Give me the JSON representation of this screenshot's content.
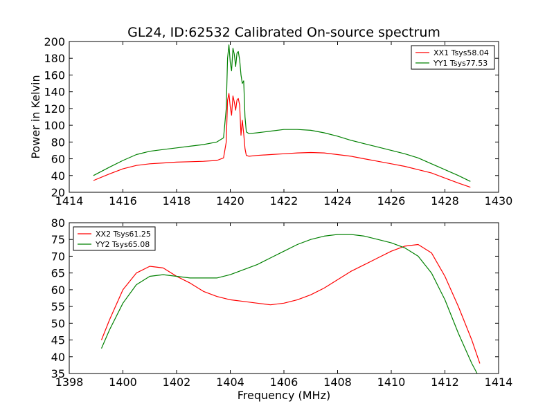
{
  "chart_data": [
    {
      "type": "line",
      "title": "GL24, ID:62532 Calibrated On-source spectrum",
      "xlabel": "",
      "ylabel": "Power in Kelvin",
      "xlim": [
        1414,
        1430
      ],
      "ylim": [
        20,
        200
      ],
      "xticks": [
        "1414",
        "1416",
        "1418",
        "1420",
        "1422",
        "1424",
        "1426",
        "1428",
        "1430"
      ],
      "yticks": [
        "20",
        "40",
        "60",
        "80",
        "100",
        "120",
        "140",
        "160",
        "180",
        "200"
      ],
      "legend_position": "top-right",
      "series": [
        {
          "name": "XX1 Tsys58.04",
          "color": "#ff0000",
          "x": [
            1414.9,
            1415.5,
            1416.0,
            1416.5,
            1417.0,
            1417.5,
            1418.0,
            1418.5,
            1419.0,
            1419.5,
            1419.75,
            1419.85,
            1419.9,
            1419.95,
            1420.0,
            1420.05,
            1420.1,
            1420.15,
            1420.2,
            1420.25,
            1420.3,
            1420.35,
            1420.4,
            1420.45,
            1420.5,
            1420.55,
            1420.6,
            1420.7,
            1421.0,
            1421.5,
            1422.0,
            1422.5,
            1423.0,
            1423.5,
            1424.0,
            1424.5,
            1425.0,
            1425.5,
            1426.0,
            1426.5,
            1427.0,
            1427.5,
            1428.0,
            1428.5,
            1428.95
          ],
          "y": [
            34,
            42,
            48,
            52,
            54,
            55,
            56,
            56.5,
            57,
            58,
            61,
            80,
            130,
            138,
            122,
            112,
            135,
            128,
            118,
            130,
            132,
            124,
            88,
            106,
            90,
            72,
            64,
            63,
            64,
            65,
            66,
            67,
            67.5,
            67,
            65,
            63,
            60,
            57,
            54,
            51,
            47,
            43,
            37,
            31,
            26
          ]
        },
        {
          "name": "YY1 Tsys77.53",
          "color": "#008000",
          "x": [
            1414.9,
            1415.5,
            1416.0,
            1416.5,
            1417.0,
            1417.5,
            1418.0,
            1418.5,
            1419.0,
            1419.5,
            1419.75,
            1419.85,
            1419.9,
            1419.95,
            1420.0,
            1420.05,
            1420.1,
            1420.15,
            1420.2,
            1420.25,
            1420.3,
            1420.35,
            1420.4,
            1420.45,
            1420.5,
            1420.55,
            1420.6,
            1420.7,
            1421.0,
            1421.5,
            1422.0,
            1422.5,
            1423.0,
            1423.5,
            1424.0,
            1424.5,
            1425.0,
            1425.5,
            1426.0,
            1426.5,
            1427.0,
            1427.5,
            1428.0,
            1428.5,
            1428.95
          ],
          "y": [
            40,
            50,
            58,
            65,
            69,
            71,
            73,
            75,
            77,
            80,
            85,
            120,
            180,
            196,
            175,
            165,
            192,
            185,
            170,
            186,
            188,
            178,
            160,
            150,
            153,
            110,
            92,
            90,
            91,
            93,
            95,
            95,
            94,
            91,
            87,
            82,
            78,
            74,
            70,
            66,
            61,
            54,
            47,
            40,
            33
          ]
        }
      ]
    },
    {
      "type": "line",
      "title": "",
      "xlabel": "Frequency (MHz)",
      "ylabel": "",
      "xlim": [
        1398,
        1414
      ],
      "ylim": [
        35,
        80
      ],
      "xticks": [
        "1398",
        "1400",
        "1402",
        "1404",
        "1406",
        "1408",
        "1410",
        "1412",
        "1414"
      ],
      "yticks": [
        "35",
        "40",
        "45",
        "50",
        "55",
        "60",
        "65",
        "70",
        "75",
        "80"
      ],
      "legend_position": "top-left",
      "series": [
        {
          "name": "XX2 Tsys61.25",
          "color": "#ff0000",
          "x": [
            1399.2,
            1399.5,
            1400.0,
            1400.5,
            1401.0,
            1401.5,
            1402.0,
            1402.5,
            1403.0,
            1403.5,
            1404.0,
            1404.5,
            1405.0,
            1405.5,
            1406.0,
            1406.5,
            1407.0,
            1407.5,
            1408.0,
            1408.5,
            1409.0,
            1409.5,
            1410.0,
            1410.5,
            1411.0,
            1411.5,
            1412.0,
            1412.5,
            1413.0,
            1413.3
          ],
          "y": [
            45,
            51,
            60,
            65,
            67,
            66.5,
            64,
            62,
            59.5,
            58,
            57,
            56.5,
            56,
            55.5,
            56,
            57,
            58.5,
            60.5,
            63,
            65.5,
            67.5,
            69.5,
            71.5,
            73,
            73.5,
            71,
            64,
            55,
            45,
            38
          ]
        },
        {
          "name": "YY2 Tsys65.08",
          "color": "#008000",
          "x": [
            1399.2,
            1399.5,
            1400.0,
            1400.5,
            1401.0,
            1401.5,
            1402.0,
            1402.5,
            1403.0,
            1403.5,
            1404.0,
            1404.5,
            1405.0,
            1405.5,
            1406.0,
            1406.5,
            1407.0,
            1407.5,
            1408.0,
            1408.5,
            1409.0,
            1409.5,
            1410.0,
            1410.5,
            1411.0,
            1411.5,
            1412.0,
            1412.5,
            1413.0,
            1413.2
          ],
          "y": [
            42.5,
            48,
            56,
            61.5,
            64,
            64.5,
            64,
            63.5,
            63.5,
            63.5,
            64.5,
            66,
            67.5,
            69.5,
            71.5,
            73.5,
            75,
            76,
            76.5,
            76.5,
            76,
            75,
            74,
            72.5,
            70,
            65,
            57,
            47,
            38,
            35
          ]
        }
      ]
    }
  ]
}
